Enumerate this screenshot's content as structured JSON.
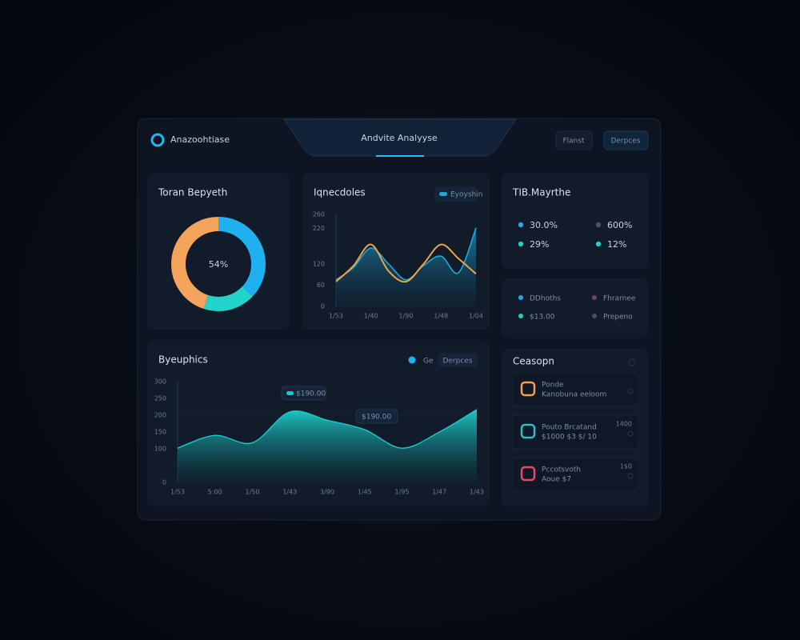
{
  "header": {
    "brand": "Anazoohtiase",
    "title": "Andvite Analyyse",
    "buttons": [
      "Flanst",
      "Derpces"
    ]
  },
  "donut_panel": {
    "title": "Toran Bepyeth",
    "center_label": "54%",
    "segments": [
      {
        "color": "#1fb0f0",
        "value": 37
      },
      {
        "color": "#21d3c8",
        "value": 18
      },
      {
        "color": "#f4a35a",
        "value": 45
      }
    ]
  },
  "trend_panel": {
    "title": "Iqnecdoles",
    "chip": "Eyoyshin",
    "categories": [
      "1/53",
      null,
      "1/40",
      null,
      "1/90",
      null,
      "1/48",
      null,
      "1/04"
    ],
    "ylim": [
      0,
      260
    ],
    "yticks": [
      0,
      60,
      120,
      220,
      260
    ],
    "series": [
      {
        "color": "#1fa8d6",
        "values": [
          75,
          110,
          165,
          120,
          75,
          115,
          142,
          95,
          222
        ]
      },
      {
        "color": "#f0a24a",
        "values": [
          70,
          115,
          175,
          100,
          70,
          120,
          175,
          135,
          92
        ]
      }
    ]
  },
  "wave_panel": {
    "title": "Byeuphics",
    "legend": "Ge",
    "legend_color": "#1fb0f0",
    "chip": "Derpces",
    "categories": [
      "1/53",
      "5:00",
      "1/50",
      "1/43",
      "3/90",
      "1/45",
      "1/95",
      "1/47",
      "1/43"
    ],
    "ylim": [
      0,
      300
    ],
    "yticks": [
      0,
      100,
      150,
      200,
      250,
      300
    ],
    "values": [
      102,
      140,
      118,
      210,
      185,
      157,
      102,
      150,
      217
    ],
    "color": "#19c8c8",
    "annotations": [
      "$190.00",
      "$190.00"
    ]
  },
  "stats_panel": {
    "title": "TIB.Mayrthe",
    "items": [
      {
        "text": "30.0%",
        "color": "#2aa7e6"
      },
      {
        "text": "600%",
        "color": "#4a5566"
      },
      {
        "text": "29%",
        "color": "#22d0c0"
      },
      {
        "text": "12%",
        "color": "#22d0c0"
      }
    ]
  },
  "summary_panel": {
    "items": [
      {
        "text": "DDhoths",
        "color": "#2aa7e6"
      },
      {
        "text": "Fhrarnee",
        "color": "#6a4a58"
      },
      {
        "text": "$13.00",
        "color": "#22d0c0"
      },
      {
        "text": "Prepeno",
        "color": "#5a4a55"
      }
    ]
  },
  "list_panel": {
    "title": "Ceasopn",
    "items": [
      {
        "title": "Ponde",
        "subtitle": "Kanobuna eeloom",
        "meta": "",
        "color": "#f2a04a"
      },
      {
        "title": "Pouto Brcatand",
        "subtitle": "$1000 $3 $/ 10",
        "meta": "1400",
        "color": "#27c2c9"
      },
      {
        "title": "Pccotsvoth",
        "subtitle": "Aoue $7",
        "meta": "1$0",
        "color": "#e8466e"
      }
    ]
  }
}
